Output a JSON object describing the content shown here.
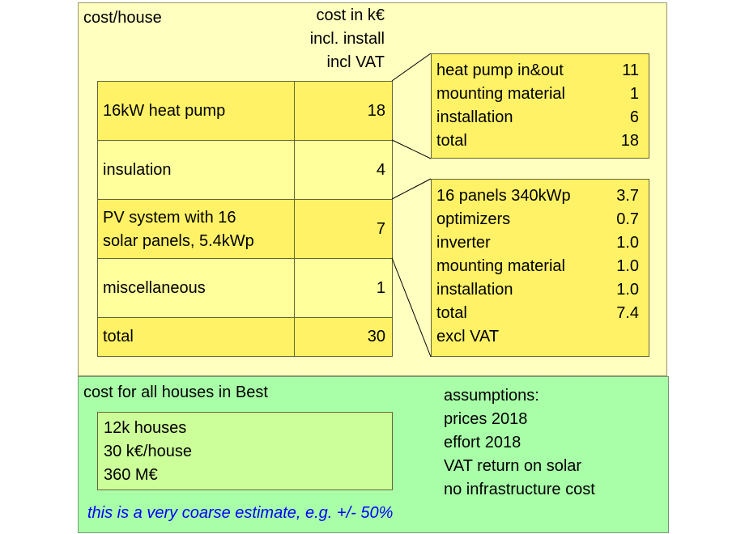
{
  "top": {
    "title": "cost/house",
    "header": [
      "cost in k€",
      "incl. install",
      "incl VAT"
    ],
    "rows": [
      {
        "label": "16kW heat pump",
        "value": "18"
      },
      {
        "label": "insulation",
        "value": "4"
      },
      {
        "label_lines": [
          "PV system with 16",
          "solar panels, 5.4kWp"
        ],
        "value": "7"
      },
      {
        "label": "miscellaneous",
        "value": "1"
      },
      {
        "label": "total",
        "value": "30"
      }
    ]
  },
  "heat_pump_breakdown": [
    {
      "label": "heat pump in&out",
      "value": "11"
    },
    {
      "label": "mounting material",
      "value": "1"
    },
    {
      "label": "installation",
      "value": "6"
    },
    {
      "label": "total",
      "value": "18"
    }
  ],
  "pv_breakdown": {
    "items": [
      {
        "label": "16 panels 340kWp",
        "value": "3.7"
      },
      {
        "label": "optimizers",
        "value": "0.7"
      },
      {
        "label": "inverter",
        "value": "1.0"
      },
      {
        "label": "mounting material",
        "value": "1.0"
      },
      {
        "label": "installation",
        "value": "1.0"
      },
      {
        "label": "total",
        "value": "7.4"
      }
    ],
    "note": "excl VAT"
  },
  "bottom": {
    "title": "cost for all houses in Best",
    "summary": [
      "12k houses",
      "30 k€/house",
      "360 M€"
    ],
    "assumptions": [
      "assumptions:",
      "prices 2018",
      "effort 2018",
      "VAT return on solar",
      "no infrastructure cost"
    ],
    "footnote": "this is a very coarse estimate, e.g. +/- 50%"
  },
  "colors": {
    "top_panel": "#ffffc0",
    "bottom_panel": "#a8ffa8",
    "cell_dark": "#fff266",
    "cell_light": "#ffff9c",
    "summary_box": "#ccff99",
    "footnote": "#0000ff"
  }
}
